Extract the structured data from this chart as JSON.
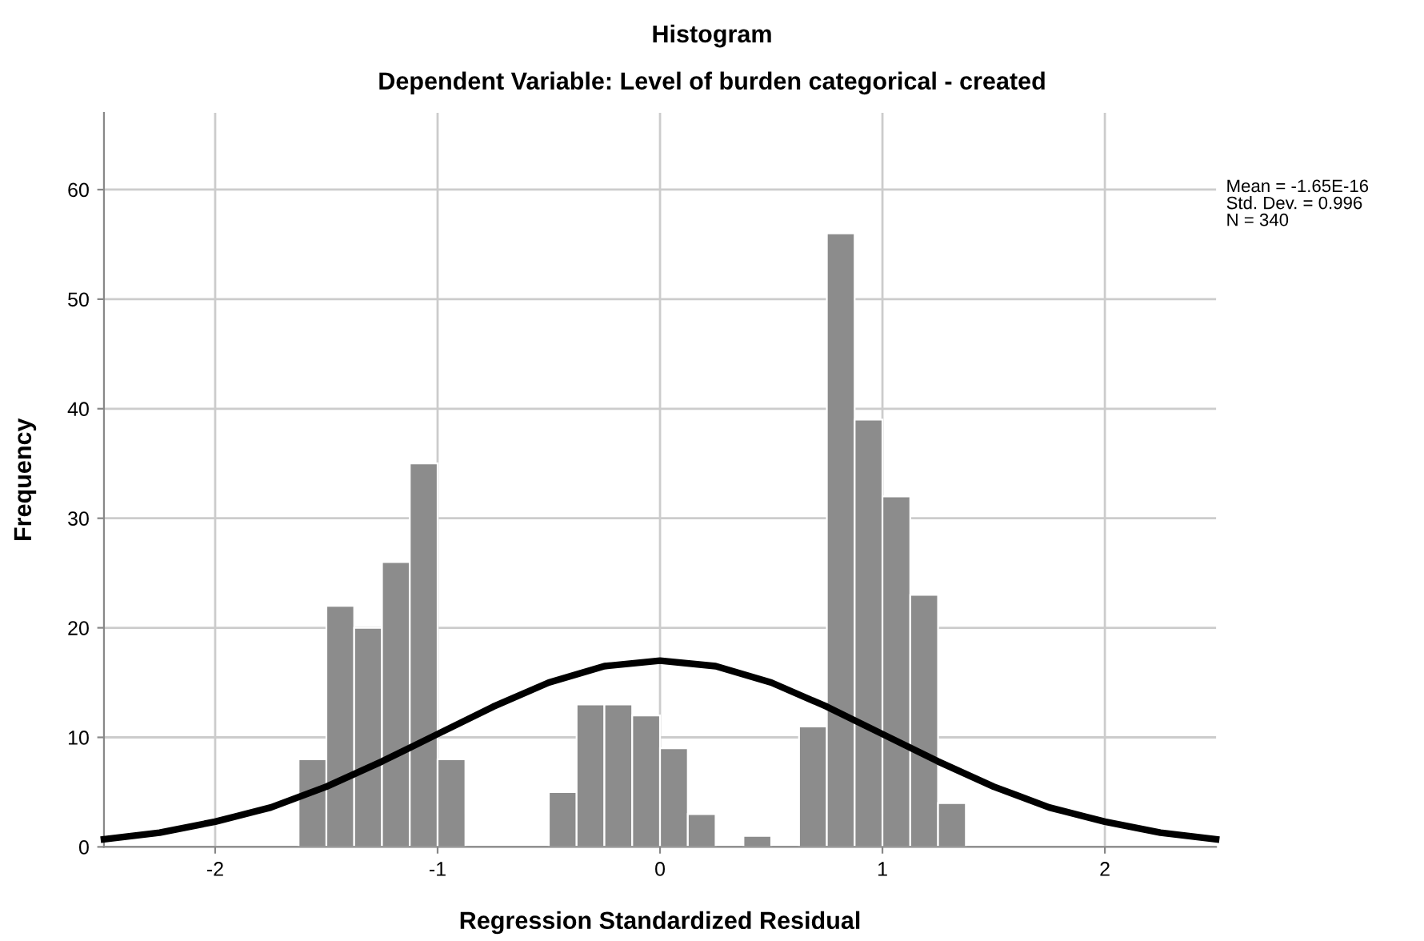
{
  "chart_data": {
    "type": "histogram",
    "title": "Histogram",
    "subtitle": "Dependent Variable: Level of burden categorical - created",
    "xlabel": "Regression Standardized Residual",
    "ylabel": "Frequency",
    "bins": [
      -1.625,
      -1.5,
      -1.375,
      -1.25,
      -1.125,
      -1.0,
      -0.875,
      -0.75,
      -0.625,
      -0.5,
      -0.375,
      -0.25,
      -0.125,
      0.0,
      0.125,
      0.25,
      0.375,
      0.5,
      0.625,
      0.75,
      0.875,
      1.0,
      1.125,
      1.25,
      1.375
    ],
    "values": [
      8,
      22,
      20,
      26,
      35,
      8,
      0,
      0,
      0,
      5,
      13,
      13,
      12,
      9,
      3,
      0,
      1,
      0,
      11,
      56,
      39,
      32,
      23,
      4
    ],
    "color": "#8c8c8c",
    "series": [
      {
        "type": "line",
        "color": "#000000",
        "x": [
          -2.5,
          -2.25,
          -2.0,
          -1.75,
          -1.5,
          -1.25,
          -1.0,
          -0.75,
          -0.5,
          -0.25,
          0.0,
          0.25,
          0.5,
          0.75,
          1.0,
          1.25,
          1.5,
          1.75,
          2.0,
          2.25,
          2.5
        ],
        "values": [
          0.7,
          1.3,
          2.3,
          3.6,
          5.5,
          7.8,
          10.3,
          12.8,
          15.0,
          16.5,
          17.0,
          16.5,
          15.0,
          12.8,
          10.3,
          7.8,
          5.5,
          3.6,
          2.3,
          1.3,
          0.7
        ]
      }
    ],
    "xlim": [
      -2.5,
      2.5
    ],
    "ylim": [
      0,
      67
    ],
    "xticks": [
      -2,
      -1,
      0,
      1,
      2
    ],
    "yticks": [
      0,
      10,
      20,
      30,
      40,
      50,
      60
    ],
    "grid": true,
    "annotations": [
      "Mean = -1.65E-16",
      "Std. Dev. = 0.996",
      "N = 340"
    ]
  }
}
